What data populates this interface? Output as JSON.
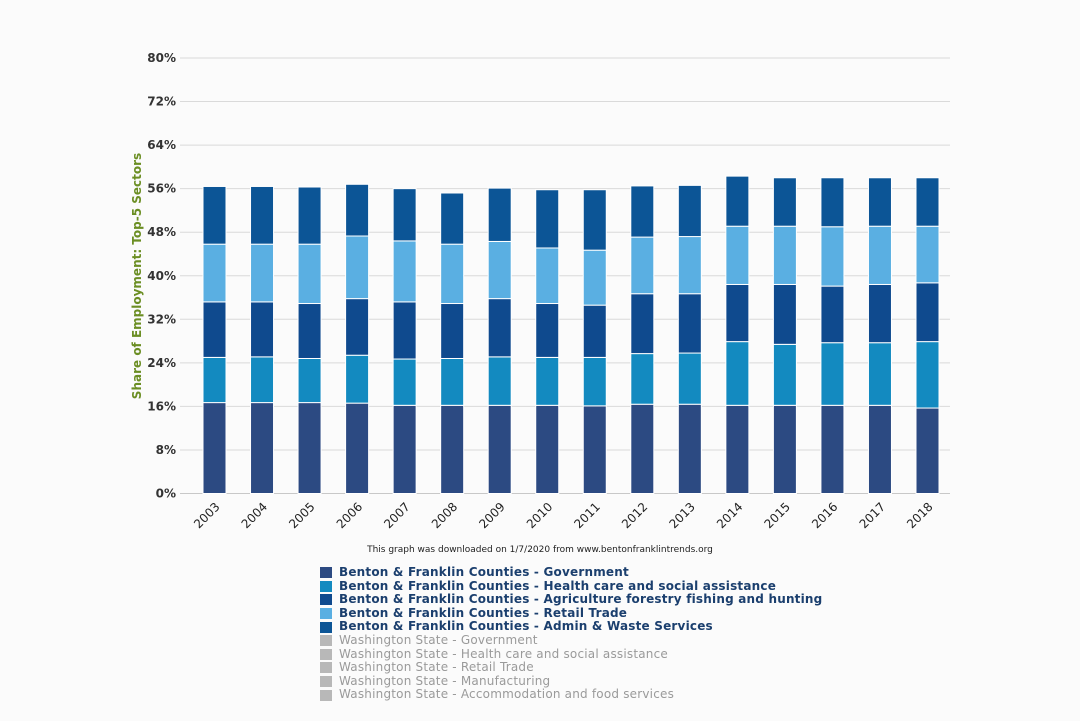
{
  "credit": "This graph was downloaded on 1/7/2020 from www.bentonfranklintrends.org",
  "chart_data": {
    "type": "bar",
    "stacked": true,
    "title": "",
    "xlabel": "",
    "ylabel": "Share of Employment: Top-5 Sectors",
    "ylim": [
      0,
      80
    ],
    "yticks": [
      "0%",
      "8%",
      "16%",
      "24%",
      "32%",
      "40%",
      "48%",
      "56%",
      "64%",
      "72%",
      "80%"
    ],
    "ytick_values": [
      0,
      8,
      16,
      24,
      32,
      40,
      48,
      56,
      64,
      72,
      80
    ],
    "grid": true,
    "legend_position": "bottom",
    "categories": [
      "2003",
      "2004",
      "2005",
      "2006",
      "2007",
      "2008",
      "2009",
      "2010",
      "2011",
      "2012",
      "2013",
      "2014",
      "2015",
      "2016",
      "2017",
      "2018"
    ],
    "series": [
      {
        "name": "Benton & Franklin Counties - Government",
        "color": "#2c4a82",
        "visible": true,
        "values": [
          16.7,
          16.7,
          16.7,
          16.6,
          16.2,
          16.2,
          16.2,
          16.2,
          16.1,
          16.4,
          16.4,
          16.2,
          16.2,
          16.2,
          16.2,
          15.7
        ]
      },
      {
        "name": "Benton & Franklin Counties - Health care and social assistance",
        "color": "#138ac0",
        "visible": true,
        "values": [
          8.3,
          8.4,
          8.1,
          8.8,
          8.5,
          8.6,
          8.9,
          8.8,
          8.9,
          9.3,
          9.4,
          11.7,
          11.2,
          11.5,
          11.5,
          12.2
        ]
      },
      {
        "name": "Benton & Franklin Counties - Agriculture forestry fishing and hunting",
        "color": "#0f4a8e",
        "visible": true,
        "values": [
          10.2,
          10.1,
          10.1,
          10.4,
          10.5,
          10.1,
          10.7,
          9.9,
          9.6,
          11.0,
          10.9,
          10.5,
          11.0,
          10.4,
          10.7,
          10.8
        ]
      },
      {
        "name": "Benton & Franklin Counties - Retail Trade",
        "color": "#5aafe2",
        "visible": true,
        "values": [
          10.6,
          10.6,
          10.9,
          11.5,
          11.2,
          10.9,
          10.5,
          10.2,
          10.1,
          10.4,
          10.5,
          10.7,
          10.7,
          10.9,
          10.7,
          10.4
        ]
      },
      {
        "name": "Benton & Franklin Counties - Admin & Waste Services",
        "color": "#0c5596",
        "visible": true,
        "values": [
          10.6,
          10.6,
          10.5,
          9.5,
          9.6,
          9.4,
          9.8,
          10.7,
          11.1,
          9.4,
          9.4,
          9.2,
          8.9,
          9.0,
          8.9,
          8.9
        ]
      },
      {
        "name": "Washington State - Government",
        "color": "#b8b8b8",
        "visible": false,
        "values": []
      },
      {
        "name": "Washington State - Health care and social assistance",
        "color": "#b8b8b8",
        "visible": false,
        "values": []
      },
      {
        "name": "Washington State - Retail Trade",
        "color": "#b8b8b8",
        "visible": false,
        "values": []
      },
      {
        "name": "Washington State - Manufacturing",
        "color": "#b8b8b8",
        "visible": false,
        "values": []
      },
      {
        "name": "Washington State - Accommodation and food services",
        "color": "#b8b8b8",
        "visible": false,
        "values": []
      }
    ]
  }
}
